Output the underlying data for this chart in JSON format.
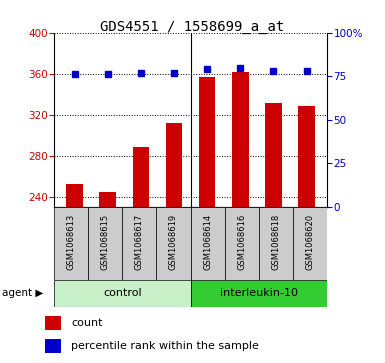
{
  "title": "GDS4551 / 1558699_a_at",
  "samples": [
    "GSM1068613",
    "GSM1068615",
    "GSM1068617",
    "GSM1068619",
    "GSM1068614",
    "GSM1068616",
    "GSM1068618",
    "GSM1068620"
  ],
  "counts": [
    252,
    245,
    288,
    312,
    357,
    362,
    331,
    328
  ],
  "percentiles": [
    76,
    76,
    77,
    77,
    79,
    80,
    78,
    78
  ],
  "bar_color": "#cc0000",
  "dot_color": "#0000cc",
  "ylim_left": [
    230,
    400
  ],
  "ylim_right": [
    0,
    100
  ],
  "yticks_left": [
    240,
    280,
    320,
    360,
    400
  ],
  "yticks_right": [
    0,
    25,
    50,
    75,
    100
  ],
  "background_color": "#cccccc",
  "control_color": "#c8f0c8",
  "il10_color": "#33cc33",
  "plot_bg": "white",
  "legend_count": "count",
  "legend_percentile": "percentile rank within the sample",
  "title_fontsize": 10,
  "axis_color_left": "#cc0000",
  "axis_color_right": "#0000cc",
  "bar_width": 0.5
}
